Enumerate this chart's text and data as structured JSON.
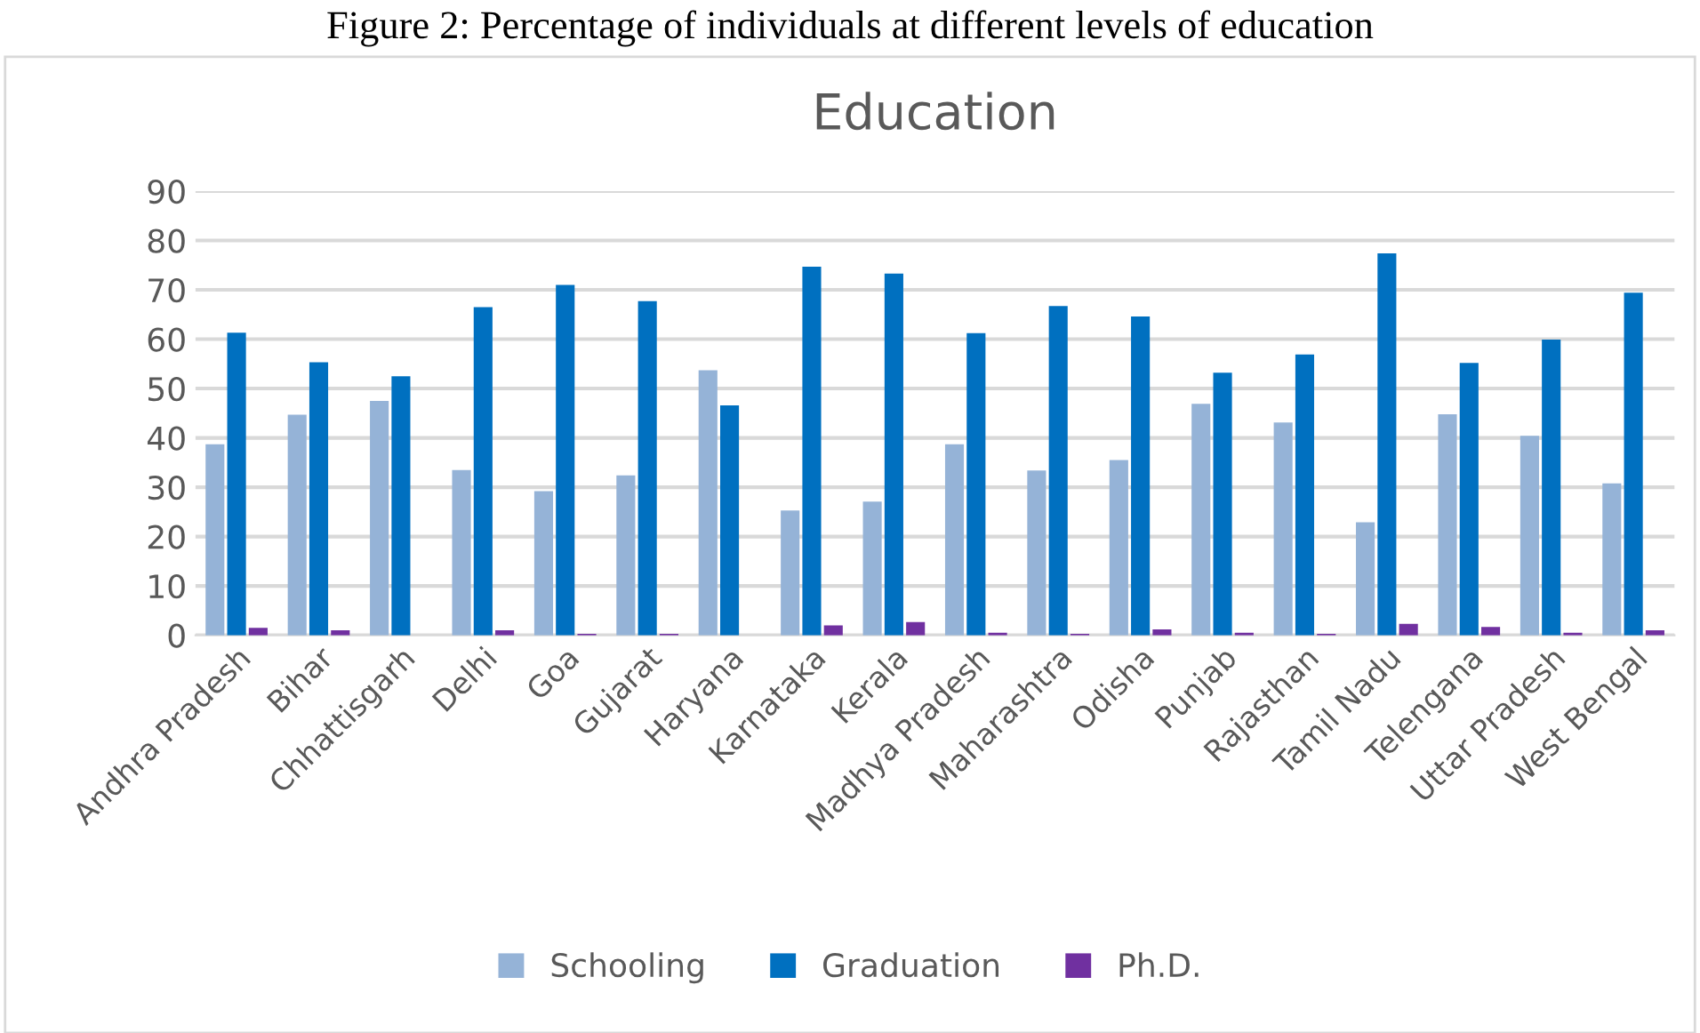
{
  "chart_data": {
    "type": "bar",
    "title": "Education",
    "annotations": [
      "Figure 2: Percentage of individuals at different levels of education"
    ],
    "categories": [
      "Andhra Pradesh",
      "Bihar",
      "Chhattisgarh",
      "Delhi",
      "Goa",
      "Gujarat",
      "Haryana",
      "Karnataka",
      "Kerala",
      "Madhya Pradesh",
      "Maharashtra",
      "Odisha",
      "Punjab",
      "Rajasthan",
      "Tamil Nadu",
      "Telengana",
      "Uttar Pradesh",
      "West Bengal"
    ],
    "series": [
      {
        "name": "Schooling",
        "color": "#95b3d7",
        "values": [
          38.7,
          44.7,
          47.5,
          33.5,
          29.2,
          32.4,
          53.7,
          25.3,
          27.1,
          38.7,
          33.4,
          35.5,
          46.9,
          43.1,
          22.9,
          44.8,
          40.4,
          30.8
        ]
      },
      {
        "name": "Graduation",
        "color": "#0070c0",
        "values": [
          61.3,
          55.3,
          52.5,
          66.5,
          71.0,
          67.7,
          46.6,
          74.7,
          73.3,
          61.2,
          66.7,
          64.6,
          53.2,
          56.9,
          77.4,
          55.2,
          59.9,
          69.4
        ]
      },
      {
        "name": "Ph.D.",
        "color": "#7030a0",
        "values": [
          1.5,
          1.0,
          0,
          1.0,
          0.3,
          0.3,
          0,
          2.0,
          2.7,
          0.5,
          0.3,
          1.2,
          0.5,
          0.3,
          2.3,
          1.7,
          0.5,
          1.0
        ]
      }
    ],
    "ylim": [
      0,
      90
    ],
    "yticks": [
      0,
      10,
      20,
      30,
      40,
      50,
      60,
      70,
      80,
      90
    ],
    "grid": "y",
    "legend": "bottom"
  }
}
